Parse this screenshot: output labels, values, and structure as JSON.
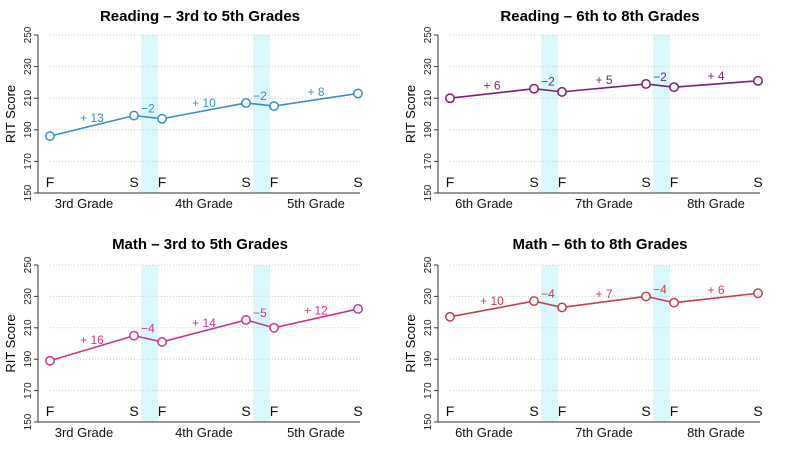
{
  "chart_data": [
    {
      "type": "line",
      "title": "Reading – 3rd to 5th Grades",
      "ylabel": "RIT Score",
      "ylim": [
        150,
        250
      ],
      "yticks": [
        150,
        170,
        190,
        210,
        230,
        250
      ],
      "grid": "horizontal dotted",
      "color": "#3a8fc0",
      "x": [
        "F",
        "S",
        "F",
        "S",
        "F",
        "S"
      ],
      "grades": [
        "3rd Grade",
        "4th Grade",
        "5th Grade"
      ],
      "values": [
        186,
        199,
        197,
        207,
        205,
        213
      ],
      "changes": [
        "+ 13",
        "−2",
        "+ 10",
        "−2",
        "+ 8"
      ],
      "summer_bands": [
        "S→F 3rd-4th",
        "S→F 4th-5th"
      ]
    },
    {
      "type": "line",
      "title": "Reading – 6th to 8th Grades",
      "ylabel": "RIT Score",
      "ylim": [
        150,
        250
      ],
      "yticks": [
        150,
        170,
        190,
        210,
        230,
        250
      ],
      "grid": "horizontal dotted",
      "color": "#7a1f73",
      "x": [
        "F",
        "S",
        "F",
        "S",
        "F",
        "S"
      ],
      "grades": [
        "6th Grade",
        "7th Grade",
        "8th Grade"
      ],
      "values": [
        210,
        216,
        214,
        219,
        217,
        221
      ],
      "changes": [
        "+ 6",
        "−2",
        "+ 5",
        "−2",
        "+ 4"
      ],
      "summer_bands": [
        "S→F 6th-7th",
        "S→F 7th-8th"
      ]
    },
    {
      "type": "line",
      "title": "Math – 3rd to 5th Grades",
      "ylabel": "RIT Score",
      "ylim": [
        150,
        250
      ],
      "yticks": [
        150,
        170,
        190,
        210,
        230,
        250
      ],
      "grid": "horizontal dotted",
      "color": "#c8368e",
      "x": [
        "F",
        "S",
        "F",
        "S",
        "F",
        "S"
      ],
      "grades": [
        "3rd Grade",
        "4th Grade",
        "5th Grade"
      ],
      "values": [
        189,
        205,
        201,
        215,
        210,
        222
      ],
      "changes": [
        "+ 16",
        "−4",
        "+ 14",
        "−5",
        "+ 12"
      ],
      "summer_bands": [
        "S→F 3rd-4th",
        "S→F 4th-5th"
      ]
    },
    {
      "type": "line",
      "title": "Math – 6th to 8th Grades",
      "ylabel": "RIT Score",
      "ylim": [
        150,
        250
      ],
      "yticks": [
        150,
        170,
        190,
        210,
        230,
        250
      ],
      "grid": "horizontal dotted",
      "color": "#c0404a",
      "x": [
        "F",
        "S",
        "F",
        "S",
        "F",
        "S"
      ],
      "grades": [
        "6th Grade",
        "7th Grade",
        "8th Grade"
      ],
      "values": [
        217,
        227,
        223,
        230,
        226,
        232
      ],
      "changes": [
        "+ 10",
        "−4",
        "+ 7",
        "−4",
        "+ 6"
      ],
      "summer_bands": [
        "S→F 6th-7th",
        "S→F 7th-8th"
      ]
    }
  ]
}
